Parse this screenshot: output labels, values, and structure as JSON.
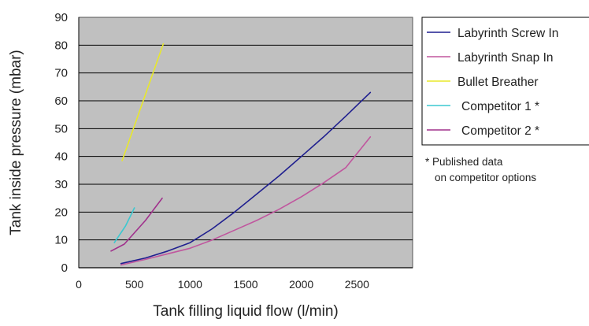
{
  "chart_data": {
    "type": "line",
    "title": "",
    "xlabel": "Tank filling liquid flow (l/min)",
    "ylabel": "Tank inside pressure (mbar)",
    "xlim": [
      0,
      3000
    ],
    "ylim": [
      0,
      90
    ],
    "x_ticks": [
      "0",
      "500",
      "1000",
      "1500",
      "2000",
      "2500"
    ],
    "x_tick_values": [
      0,
      500,
      1000,
      1500,
      2000,
      2500
    ],
    "y_ticks": [
      "0",
      "10",
      "20",
      "30",
      "40",
      "50",
      "60",
      "70",
      "80",
      "90"
    ],
    "y_tick_values": [
      0,
      10,
      20,
      30,
      40,
      50,
      60,
      70,
      80,
      90
    ],
    "grid": "horizontal",
    "plot_background": "#c0c0c0",
    "legend_position": "right",
    "series": [
      {
        "name": "Labyrinth Screw In",
        "color": "#1f1f8f",
        "x": [
          380,
          600,
          800,
          1000,
          1200,
          1400,
          1600,
          1800,
          2000,
          2200,
          2400,
          2620
        ],
        "y": [
          1.5,
          3.5,
          6,
          9,
          14,
          20,
          26.5,
          33,
          40,
          47,
          54.5,
          63
        ]
      },
      {
        "name": "Labyrinth Snap In",
        "color": "#c0569e",
        "x": [
          380,
          600,
          800,
          1000,
          1200,
          1400,
          1600,
          1800,
          2000,
          2200,
          2400,
          2620
        ],
        "y": [
          1,
          3,
          5,
          7,
          10,
          13.5,
          17,
          21,
          25.5,
          30.5,
          36,
          47
        ]
      },
      {
        "name": "Bullet Breather",
        "color": "#e8e82a",
        "x": [
          390,
          760
        ],
        "y": [
          38.5,
          80.5
        ]
      },
      {
        "name": "Competitor 1 *",
        "color": "#3cc8d0",
        "x": [
          320,
          420,
          500
        ],
        "y": [
          9,
          15,
          21.5
        ]
      },
      {
        "name": "Competitor 2 *",
        "color": "#a0308c",
        "x": [
          290,
          410,
          600,
          750
        ],
        "y": [
          6,
          8.5,
          17,
          25
        ]
      }
    ],
    "annotations": [
      "* Published data",
      "on competitor options"
    ]
  }
}
